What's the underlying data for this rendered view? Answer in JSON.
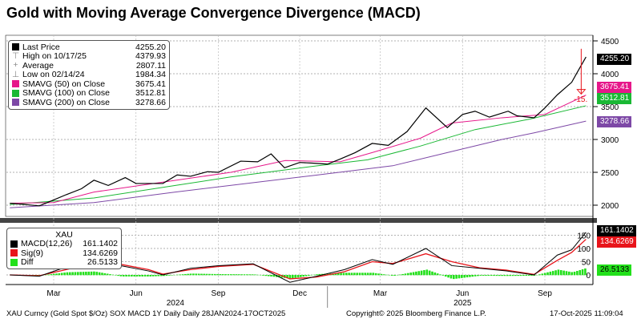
{
  "title": "Gold with Moving Average Convergence Divergence (MACD)",
  "colors": {
    "price": "#000000",
    "sma50": "#e6178a",
    "sma100": "#1ab834",
    "sma200": "#7d48a6",
    "macd": "#000000",
    "signal": "#e8141a",
    "diff": "#22e01a"
  },
  "legend_top": {
    "rows": [
      {
        "label": "Last Price",
        "value": "4255.20",
        "icon": "black-square"
      },
      {
        "label": "High on 10/17/25",
        "value": "4379.93",
        "icon": "high-marker"
      },
      {
        "label": "Average",
        "value": "2807.11",
        "icon": "average-marker"
      },
      {
        "label": "Low on 02/14/24",
        "value": "1984.34",
        "icon": "low-marker"
      },
      {
        "label": "SMAVG (50)  on Close",
        "value": "3675.41",
        "icon": "pink-square"
      },
      {
        "label": "SMAVG (100)  on Close",
        "value": "3512.81",
        "icon": "green-square"
      },
      {
        "label": "SMAVG (200)  on Close",
        "value": "3278.66",
        "icon": "purple-square"
      }
    ]
  },
  "legend_bottom": {
    "title": "XAU",
    "rows": [
      {
        "label": "MACD(12,26)",
        "value": "161.1402"
      },
      {
        "label": "Sig(9)",
        "value": "134.6269"
      },
      {
        "label": "Diff",
        "value": "26.5133"
      }
    ]
  },
  "tags": {
    "last": "4255.20",
    "sma50": "3675.41",
    "sma100": "3512.81",
    "sma200": "3278.66",
    "macd": "161.1402",
    "sig": "134.6269",
    "diff": "26.5133"
  },
  "annotation": "-15.",
  "footer": {
    "left": "XAU Curncy (Gold Spot  $/Oz) SOX MACD 1Y Daily Daily 28JAN2024-17OCT2025",
    "center": "Copyright© 2025 Bloomberg Finance L.P.",
    "right": "17-Oct-2025 11:09:04"
  },
  "chart_data": [
    {
      "type": "line",
      "title": "Gold with Moving Average Convergence Divergence (MACD)",
      "y_ticks": [
        2000,
        2500,
        3000,
        3500,
        4000,
        4500
      ],
      "ylim": [
        1900,
        4600
      ],
      "grid": true,
      "x_ticks": [
        "Mar",
        "Jun",
        "Sep",
        "Dec",
        "Mar",
        "Jun",
        "Sep"
      ],
      "x_years": [
        "2024",
        "2025"
      ],
      "series": [
        {
          "name": "Last Price",
          "points": [
            [
              "2024-01-12",
              2030
            ],
            [
              "2024-02-14",
              1990
            ],
            [
              "2024-03-01",
              2080
            ],
            [
              "2024-03-15",
              2160
            ],
            [
              "2024-04-01",
              2250
            ],
            [
              "2024-04-15",
              2380
            ],
            [
              "2024-05-01",
              2300
            ],
            [
              "2024-05-20",
              2420
            ],
            [
              "2024-06-01",
              2330
            ],
            [
              "2024-07-01",
              2330
            ],
            [
              "2024-07-17",
              2460
            ],
            [
              "2024-08-01",
              2440
            ],
            [
              "2024-08-20",
              2510
            ],
            [
              "2024-09-01",
              2500
            ],
            [
              "2024-09-26",
              2670
            ],
            [
              "2024-10-15",
              2660
            ],
            [
              "2024-10-30",
              2780
            ],
            [
              "2024-11-14",
              2570
            ],
            [
              "2024-12-01",
              2650
            ],
            [
              "2024-12-15",
              2640
            ],
            [
              "2025-01-01",
              2625
            ],
            [
              "2025-01-15",
              2700
            ],
            [
              "2025-02-01",
              2800
            ],
            [
              "2025-02-20",
              2940
            ],
            [
              "2025-03-10",
              2910
            ],
            [
              "2025-03-31",
              3120
            ],
            [
              "2025-04-21",
              3480
            ],
            [
              "2025-05-15",
              3180
            ],
            [
              "2025-06-01",
              3380
            ],
            [
              "2025-06-15",
              3430
            ],
            [
              "2025-07-01",
              3340
            ],
            [
              "2025-07-22",
              3430
            ],
            [
              "2025-08-01",
              3360
            ],
            [
              "2025-08-20",
              3330
            ],
            [
              "2025-09-01",
              3480
            ],
            [
              "2025-09-15",
              3680
            ],
            [
              "2025-10-01",
              3870
            ],
            [
              "2025-10-08",
              4040
            ],
            [
              "2025-10-17",
              4255.2
            ]
          ]
        },
        {
          "name": "SMAVG (50)  on Close",
          "points": [
            [
              "2024-01-12",
              2030
            ],
            [
              "2024-03-01",
              2040
            ],
            [
              "2024-04-15",
              2200
            ],
            [
              "2024-07-01",
              2350
            ],
            [
              "2024-09-15",
              2500
            ],
            [
              "2024-11-15",
              2680
            ],
            [
              "2025-01-15",
              2660
            ],
            [
              "2025-02-20",
              2800
            ],
            [
              "2025-04-15",
              3020
            ],
            [
              "2025-05-20",
              3250
            ],
            [
              "2025-07-15",
              3330
            ],
            [
              "2025-09-01",
              3380
            ],
            [
              "2025-10-17",
              3675.41
            ]
          ]
        },
        {
          "name": "SMAVG (100)  on Close",
          "points": [
            [
              "2024-01-12",
              2010
            ],
            [
              "2024-04-15",
              2110
            ],
            [
              "2024-07-15",
              2300
            ],
            [
              "2024-09-15",
              2430
            ],
            [
              "2024-12-15",
              2590
            ],
            [
              "2025-02-15",
              2690
            ],
            [
              "2025-04-15",
              2900
            ],
            [
              "2025-06-15",
              3150
            ],
            [
              "2025-08-15",
              3310
            ],
            [
              "2025-10-17",
              3512.81
            ]
          ]
        },
        {
          "name": "SMAVG (200)  on Close",
          "points": [
            [
              "2024-01-12",
              1960
            ],
            [
              "2024-04-15",
              2040
            ],
            [
              "2024-07-15",
              2200
            ],
            [
              "2024-10-15",
              2350
            ],
            [
              "2024-12-15",
              2450
            ],
            [
              "2025-03-15",
              2600
            ],
            [
              "2025-05-15",
              2800
            ],
            [
              "2025-07-15",
              3000
            ],
            [
              "2025-08-20",
              3100
            ],
            [
              "2025-10-17",
              3278.66
            ]
          ]
        }
      ]
    },
    {
      "type": "line",
      "title": "XAU",
      "y_ticks": [
        0,
        50,
        100,
        150
      ],
      "ylim": [
        -30,
        180
      ],
      "grid": true,
      "series": [
        {
          "name": "MACD(12,26)",
          "points": [
            [
              "2024-01-12",
              0
            ],
            [
              "2024-02-14",
              -5
            ],
            [
              "2024-03-15",
              30
            ],
            [
              "2024-04-15",
              58
            ],
            [
              "2024-05-15",
              35
            ],
            [
              "2024-06-15",
              15
            ],
            [
              "2024-07-01",
              0
            ],
            [
              "2024-08-01",
              25
            ],
            [
              "2024-09-01",
              35
            ],
            [
              "2024-10-10",
              42
            ],
            [
              "2024-11-20",
              -28
            ],
            [
              "2024-12-20",
              -5
            ],
            [
              "2025-01-20",
              20
            ],
            [
              "2025-02-20",
              58
            ],
            [
              "2025-03-15",
              40
            ],
            [
              "2025-04-21",
              100
            ],
            [
              "2025-05-20",
              35
            ],
            [
              "2025-06-20",
              25
            ],
            [
              "2025-07-20",
              15
            ],
            [
              "2025-08-20",
              0
            ],
            [
              "2025-09-15",
              75
            ],
            [
              "2025-10-01",
              95
            ],
            [
              "2025-10-17",
              161.14
            ]
          ]
        },
        {
          "name": "Sig(9)",
          "points": [
            [
              "2024-01-12",
              0
            ],
            [
              "2024-02-14",
              -3
            ],
            [
              "2024-03-15",
              20
            ],
            [
              "2024-04-15",
              45
            ],
            [
              "2024-05-15",
              40
            ],
            [
              "2024-06-15",
              20
            ],
            [
              "2024-07-01",
              3
            ],
            [
              "2024-08-01",
              20
            ],
            [
              "2024-09-01",
              32
            ],
            [
              "2024-10-10",
              40
            ],
            [
              "2024-11-20",
              -15
            ],
            [
              "2024-12-20",
              -8
            ],
            [
              "2025-01-20",
              12
            ],
            [
              "2025-02-20",
              50
            ],
            [
              "2025-03-15",
              43
            ],
            [
              "2025-04-21",
              80
            ],
            [
              "2025-05-20",
              50
            ],
            [
              "2025-06-20",
              27
            ],
            [
              "2025-07-20",
              18
            ],
            [
              "2025-08-20",
              2
            ],
            [
              "2025-09-15",
              55
            ],
            [
              "2025-10-01",
              85
            ],
            [
              "2025-10-17",
              134.63
            ]
          ]
        }
      ]
    }
  ]
}
